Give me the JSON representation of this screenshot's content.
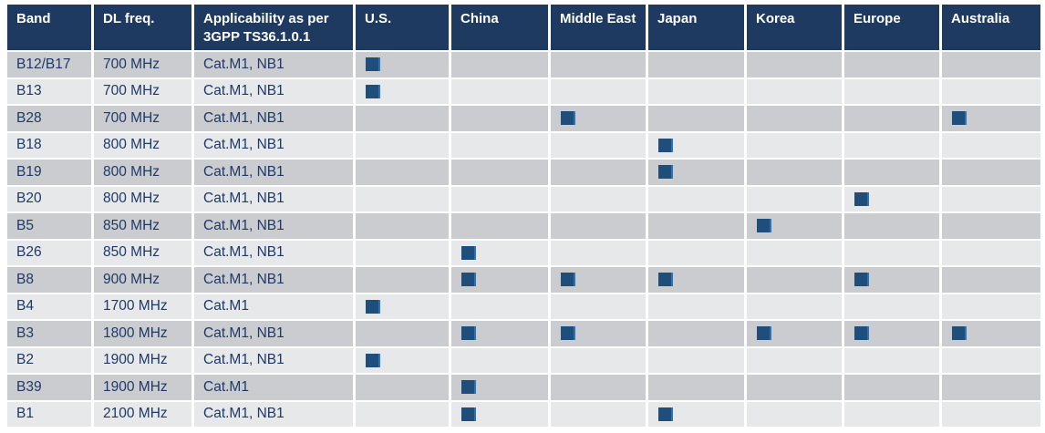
{
  "colors": {
    "header_bg": "#1f3a60",
    "header_text": "#ffffff",
    "row_dark": "#cbccd0",
    "row_light": "#e7e8ea",
    "body_text": "#1e3968",
    "marker": "#1f4e7b",
    "marker_edge": "#2d73b6"
  },
  "marker_icon": "filled-square",
  "table": {
    "columns": [
      "Band",
      "DL freq.",
      "Applicability as per 3GPP TS36.1.0.1",
      "U.S.",
      "China",
      "Middle East",
      "Japan",
      "Korea",
      "Europe",
      "Australia"
    ],
    "region_columns": [
      "U.S.",
      "China",
      "Middle East",
      "Japan",
      "Korea",
      "Europe",
      "Australia"
    ],
    "rows": [
      {
        "band": "B12/B17",
        "dl_freq": "700 MHz",
        "applicability": "Cat.M1, NB1",
        "regions": [
          "U.S."
        ]
      },
      {
        "band": "B13",
        "dl_freq": "700 MHz",
        "applicability": "Cat.M1, NB1",
        "regions": [
          "U.S."
        ]
      },
      {
        "band": "B28",
        "dl_freq": "700 MHz",
        "applicability": "Cat.M1, NB1",
        "regions": [
          "Middle East",
          "Australia"
        ]
      },
      {
        "band": "B18",
        "dl_freq": "800 MHz",
        "applicability": "Cat.M1, NB1",
        "regions": [
          "Japan"
        ]
      },
      {
        "band": "B19",
        "dl_freq": "800 MHz",
        "applicability": "Cat.M1, NB1",
        "regions": [
          "Japan"
        ]
      },
      {
        "band": "B20",
        "dl_freq": "800 MHz",
        "applicability": "Cat.M1, NB1",
        "regions": [
          "Europe"
        ]
      },
      {
        "band": "B5",
        "dl_freq": "850 MHz",
        "applicability": "Cat.M1, NB1",
        "regions": [
          "Korea"
        ]
      },
      {
        "band": "B26",
        "dl_freq": "850 MHz",
        "applicability": "Cat.M1, NB1",
        "regions": [
          "China"
        ]
      },
      {
        "band": "B8",
        "dl_freq": "900 MHz",
        "applicability": "Cat.M1, NB1",
        "regions": [
          "China",
          "Middle East",
          "Japan",
          "Europe"
        ]
      },
      {
        "band": "B4",
        "dl_freq": "1700 MHz",
        "applicability": "Cat.M1",
        "regions": [
          "U.S."
        ]
      },
      {
        "band": "B3",
        "dl_freq": "1800 MHz",
        "applicability": "Cat.M1, NB1",
        "regions": [
          "China",
          "Middle East",
          "Korea",
          "Europe",
          "Australia"
        ]
      },
      {
        "band": "B2",
        "dl_freq": "1900 MHz",
        "applicability": "Cat.M1, NB1",
        "regions": [
          "U.S."
        ]
      },
      {
        "band": "B39",
        "dl_freq": "1900 MHz",
        "applicability": "Cat.M1",
        "regions": [
          "China"
        ]
      },
      {
        "band": "B1",
        "dl_freq": "2100 MHz",
        "applicability": "Cat.M1, NB1",
        "regions": [
          "China",
          "Japan"
        ]
      }
    ]
  }
}
